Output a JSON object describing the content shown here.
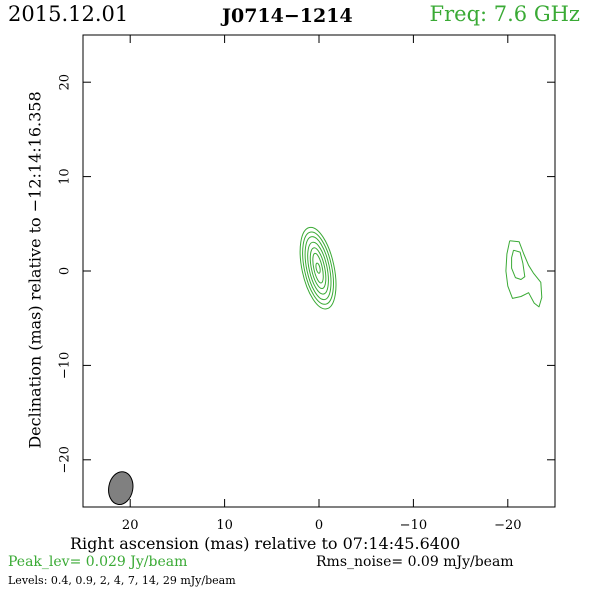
{
  "header": {
    "date": "2015.12.01",
    "source": "J0714−1214",
    "frequency": "Freq: 7.6 GHz"
  },
  "footer": {
    "peak": "Peak_lev=  0.029 Jy/beam",
    "rms": "Rms_noise= 0.09 mJy/beam",
    "levels": "Levels: 0.4, 0.9,   2,   4,   7,  14,  29 mJy/beam"
  },
  "colors": {
    "contour": "#3aaa35",
    "beam": "#808080",
    "axes": "#000000"
  },
  "chart_data": {
    "type": "contour",
    "xlabel": "Right ascension (mas) relative to 07:14:45.6400",
    "ylabel": "Declination (mas) relative to −12:14:16.358",
    "xlim": [
      25,
      -25
    ],
    "ylim": [
      -25,
      25
    ],
    "x_reversed": true,
    "x_ticks": [
      20,
      10,
      0,
      -10,
      -20
    ],
    "x_tick_labels": [
      "20",
      "10",
      "0",
      "−10",
      "−20"
    ],
    "y_ticks": [
      20,
      10,
      0,
      -10,
      -20
    ],
    "y_tick_labels": [
      "20",
      "10",
      "0",
      "−10",
      "−20"
    ],
    "contour_levels_mJy": [
      0.4,
      0.9,
      2,
      4,
      7,
      14,
      29
    ],
    "components": [
      {
        "component": "core",
        "x": 0.1,
        "y": 0.3,
        "contours": [
          {
            "rx": 1.7,
            "ry": 4.4,
            "angle": 12
          },
          {
            "rx": 1.45,
            "ry": 3.9,
            "angle": 12
          },
          {
            "rx": 1.2,
            "ry": 3.4,
            "angle": 12
          },
          {
            "rx": 0.95,
            "ry": 2.8,
            "angle": 12
          },
          {
            "rx": 0.7,
            "ry": 2.2,
            "angle": 12
          },
          {
            "rx": 0.45,
            "ry": 1.6,
            "angle": 12
          },
          {
            "rx": 0.2,
            "ry": 0.55,
            "angle": 12
          }
        ]
      },
      {
        "component": "jet",
        "outer": [
          [
            -20.2,
            3.2
          ],
          [
            -21.2,
            3.1
          ],
          [
            -21.7,
            1.8
          ],
          [
            -22.2,
            0.6
          ],
          [
            -22.7,
            -0.2
          ],
          [
            -23.5,
            -1.2
          ],
          [
            -23.6,
            -2.8
          ],
          [
            -23.3,
            -3.8
          ],
          [
            -22.8,
            -3.4
          ],
          [
            -22.2,
            -2.3
          ],
          [
            -21.4,
            -2.7
          ],
          [
            -20.5,
            -2.9
          ],
          [
            -20.0,
            -1.6
          ],
          [
            -19.8,
            0.0
          ],
          [
            -19.9,
            1.8
          ],
          [
            -20.2,
            3.2
          ]
        ],
        "inner": [
          [
            -20.6,
            2.2
          ],
          [
            -21.3,
            2.0
          ],
          [
            -21.6,
            0.8
          ],
          [
            -21.8,
            -0.6
          ],
          [
            -21.4,
            -0.9
          ],
          [
            -20.8,
            -0.7
          ],
          [
            -20.4,
            0.3
          ],
          [
            -20.4,
            1.4
          ],
          [
            -20.6,
            2.2
          ]
        ]
      }
    ],
    "beam": {
      "x": 21.0,
      "y": -23.0,
      "major": 3.5,
      "minor": 1.5,
      "angle": -10
    }
  }
}
